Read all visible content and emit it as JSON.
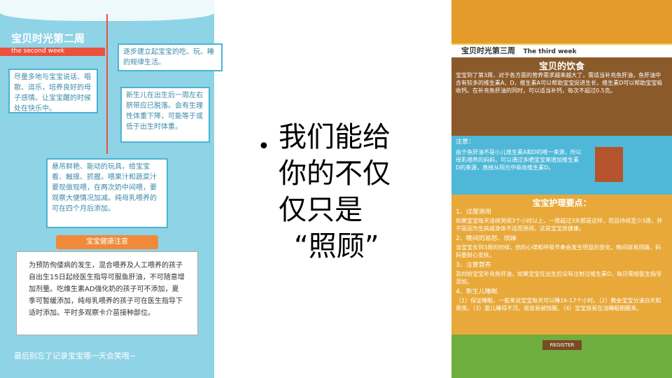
{
  "left_panel": {
    "title": "宝贝时光第二周",
    "subtitle": "the second week",
    "notes": [
      "逐步建立起宝宝的吃、玩、睡的规律生活。",
      "尽量多地与宝宝说话、唱歌、逗乐，培养良好的母子感情。让宝宝醒的时候处在快乐中。",
      "新生儿在出生后一周左右脐带应已脱落。会有生理性体重下降，可能等于或低于出生时体重。",
      "悬吊鲜艳、能动的玩具，给宝宝看、触摸、抓握。喂果汁和蔬菜汁要现做现喂，在两次奶中间喂，要观察大便情况加减。纯母乳喂养的可在四个月后添加。"
    ],
    "health_banner": "宝宝健康注意",
    "health_text": "为预防佝偻病的发生，混合喂养及人工喂养的孩子自出生15日起经医生指导可服鱼肝油，不可随意增加剂量。吃维生素AD强化奶的孩子可不添加，夏季可暂缓添加，纯母乳喂养的孩子可在医生指导下适时添加。平时多观察卡介苗接种部位。",
    "footer": "最后别忘了记录宝宝哪一天会笑哦~"
  },
  "bullet": {
    "lines": [
      "我们能给",
      "你的不仅",
      "仅只是",
      "“照顾”"
    ]
  },
  "right_panel": {
    "title": "宝贝时光第三周",
    "subtitle": "The third week",
    "diet_heading": "宝贝的饮食",
    "diet_text": "宝宝到了第3周，对于各方面的营养需求越来越大了，需适当补充鱼肝油，鱼肝油中含有较多的维生素A、D，维生素A可以帮助宝宝促进生长，维生素D可以帮助宝宝吸收钙。在补充鱼肝油的同时，可以适当补钙，每次不超过0.5克。",
    "note_heading": "注意：",
    "note_text": "由于鱼肝油不是小儿维生素A和D的唯一来源，所以母乳喂养的妈妈，可以通过多晒宝宝来增加维生素D的来源，直接从阳光中吸收维生素D。",
    "care_heading": "宝宝护理要点：",
    "care_items": [
      {
        "heading": "1、过度哭闹",
        "text": "如果宝宝每天连续哭闹3个小时以上，一周超过3天都是这样，而且持续至少3周，并不是因为生病或身体不适而哭闹，这是宝宝很健康。"
      },
      {
        "heading": "2、晚间的易怒、烦躁",
        "text": "当宝宝长到3周的时候，他的心律和呼吸节奏会发生明显的变化，晚间容易烦躁，妈妈要耐心安抚。"
      },
      {
        "heading": "3、注意营养",
        "text": "及时给宝宝补充鱼肝油，如果宝宝在出生后没有注射过维生素D，每日需按医生指导添加。"
      },
      {
        "heading": "4、新生儿睡眠",
        "text": "（1）保证睡眠，一般来说宝宝每天可以睡16-17个小时。（2）教会宝宝分清白天和黑夜。（3）婴儿睡得不沉，很容易被惊醒。（4）宝宝容易在浅睡眠期醒来。"
      }
    ],
    "sign": "REGISTER"
  }
}
